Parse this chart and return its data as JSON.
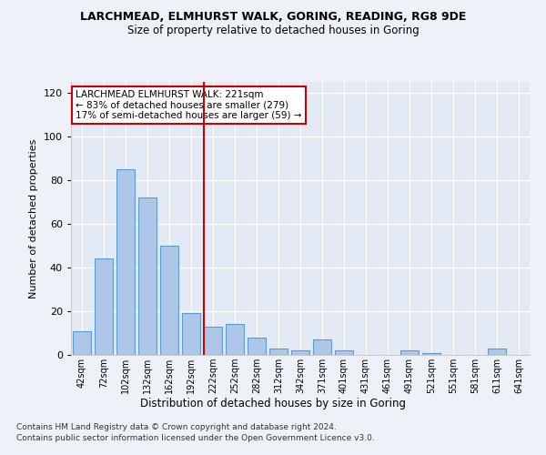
{
  "title1": "LARCHMEAD, ELMHURST WALK, GORING, READING, RG8 9DE",
  "title2": "Size of property relative to detached houses in Goring",
  "xlabel": "Distribution of detached houses by size in Goring",
  "ylabel": "Number of detached properties",
  "categories": [
    "42sqm",
    "72sqm",
    "102sqm",
    "132sqm",
    "162sqm",
    "192sqm",
    "222sqm",
    "252sqm",
    "282sqm",
    "312sqm",
    "342sqm",
    "371sqm",
    "401sqm",
    "431sqm",
    "461sqm",
    "491sqm",
    "521sqm",
    "551sqm",
    "581sqm",
    "611sqm",
    "641sqm"
  ],
  "values": [
    11,
    44,
    85,
    72,
    50,
    19,
    13,
    14,
    8,
    3,
    2,
    7,
    2,
    0,
    0,
    2,
    1,
    0,
    0,
    3,
    0
  ],
  "bar_color": "#aec6e8",
  "bar_edge_color": "#5b9bd5",
  "vline_x": 5.575,
  "vline_color": "#cc0000",
  "annotation_text": "LARCHMEAD ELMHURST WALK: 221sqm\n← 83% of detached houses are smaller (279)\n17% of semi-detached houses are larger (59) →",
  "annotation_box_color": "#ffffff",
  "annotation_box_edge": "#cc0000",
  "ylim": [
    0,
    125
  ],
  "yticks": [
    0,
    20,
    40,
    60,
    80,
    100,
    120
  ],
  "footer1": "Contains HM Land Registry data © Crown copyright and database right 2024.",
  "footer2": "Contains public sector information licensed under the Open Government Licence v3.0.",
  "bg_color": "#eef2f8",
  "plot_bg_color": "#e4eaf5"
}
